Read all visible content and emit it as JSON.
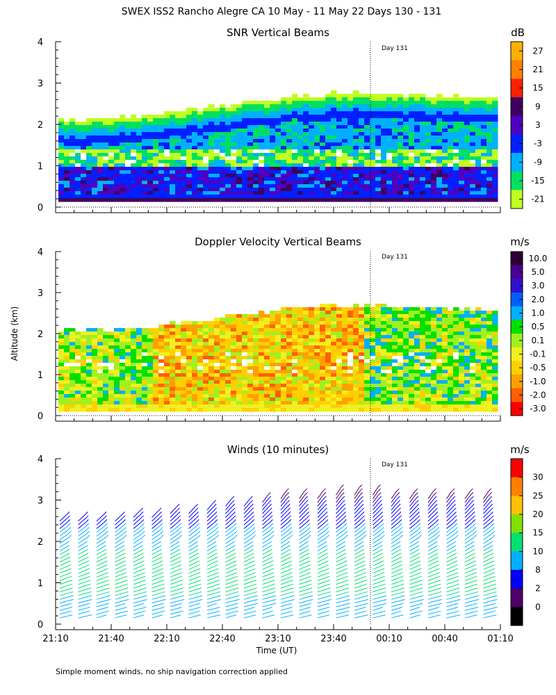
{
  "title": "SWEX ISS2 Rancho Alegre CA  10 May - 11 May 22 Days 130 - 131",
  "footnote": "Simple moment winds, no ship navigation correction applied",
  "ylabel": "Altitude (km)",
  "xlabel": "Time (UT)",
  "day_marker": "Day 131",
  "time_ticks": [
    "21:10",
    "21:40",
    "22:10",
    "22:40",
    "23:10",
    "23:40",
    "00:10",
    "00:40",
    "01:10"
  ],
  "alt_ticks": [
    "0",
    "1",
    "2",
    "3",
    "4"
  ],
  "chart_data": [
    {
      "type": "heatmap",
      "title": "SNR Vertical Beams",
      "unit": "dB",
      "ylabel": "Altitude (km)",
      "ylim": [
        0,
        4
      ],
      "x_range": [
        "21:10",
        "01:10"
      ],
      "colorbar_ticks": [
        "27",
        "21",
        "15",
        "9",
        "3",
        "-3",
        "-9",
        "-15",
        "-21"
      ],
      "colorbar_colors": [
        "#ffb000",
        "#ff8000",
        "#ff2000",
        "#400060",
        "#5000c0",
        "#0020ff",
        "#00b0ff",
        "#00e060",
        "#c0ff20"
      ],
      "top_of_echo_km": [
        2.15,
        2.2,
        2.3,
        2.45,
        2.6,
        2.75,
        2.8,
        2.75,
        2.7,
        2.7
      ]
    },
    {
      "type": "heatmap",
      "title": "Doppler Velocity Vertical Beams",
      "unit": "m/s",
      "ylabel": "Altitude (km)",
      "ylim": [
        0,
        4
      ],
      "x_range": [
        "21:10",
        "01:10"
      ],
      "colorbar_ticks": [
        "10.0",
        "5.0",
        "3.0",
        "2.0",
        "1.0",
        "0.5",
        "0.1",
        "-0.1",
        "-0.5",
        "-1.0",
        "-2.0",
        "-3.0"
      ],
      "colorbar_colors": [
        "#300030",
        "#4a0090",
        "#3010d0",
        "#0060ff",
        "#00b0ff",
        "#00e000",
        "#a0f020",
        "#f0f020",
        "#ffd000",
        "#ffa000",
        "#ff6000",
        "#ff0000"
      ]
    },
    {
      "type": "barbs",
      "title": "Winds (10 minutes)",
      "unit": "m/s",
      "ylabel": "Altitude (km)",
      "ylim": [
        0,
        4
      ],
      "x_range": [
        "21:10",
        "01:10"
      ],
      "colorbar_ticks": [
        "30",
        "25",
        "20",
        "15",
        "10",
        "8",
        "2",
        "0"
      ],
      "colorbar_colors": [
        "#ff0000",
        "#ff8000",
        "#ffc000",
        "#80e000",
        "#00e070",
        "#00b0ff",
        "#0000ff",
        "#50006a",
        "#000000"
      ]
    }
  ]
}
